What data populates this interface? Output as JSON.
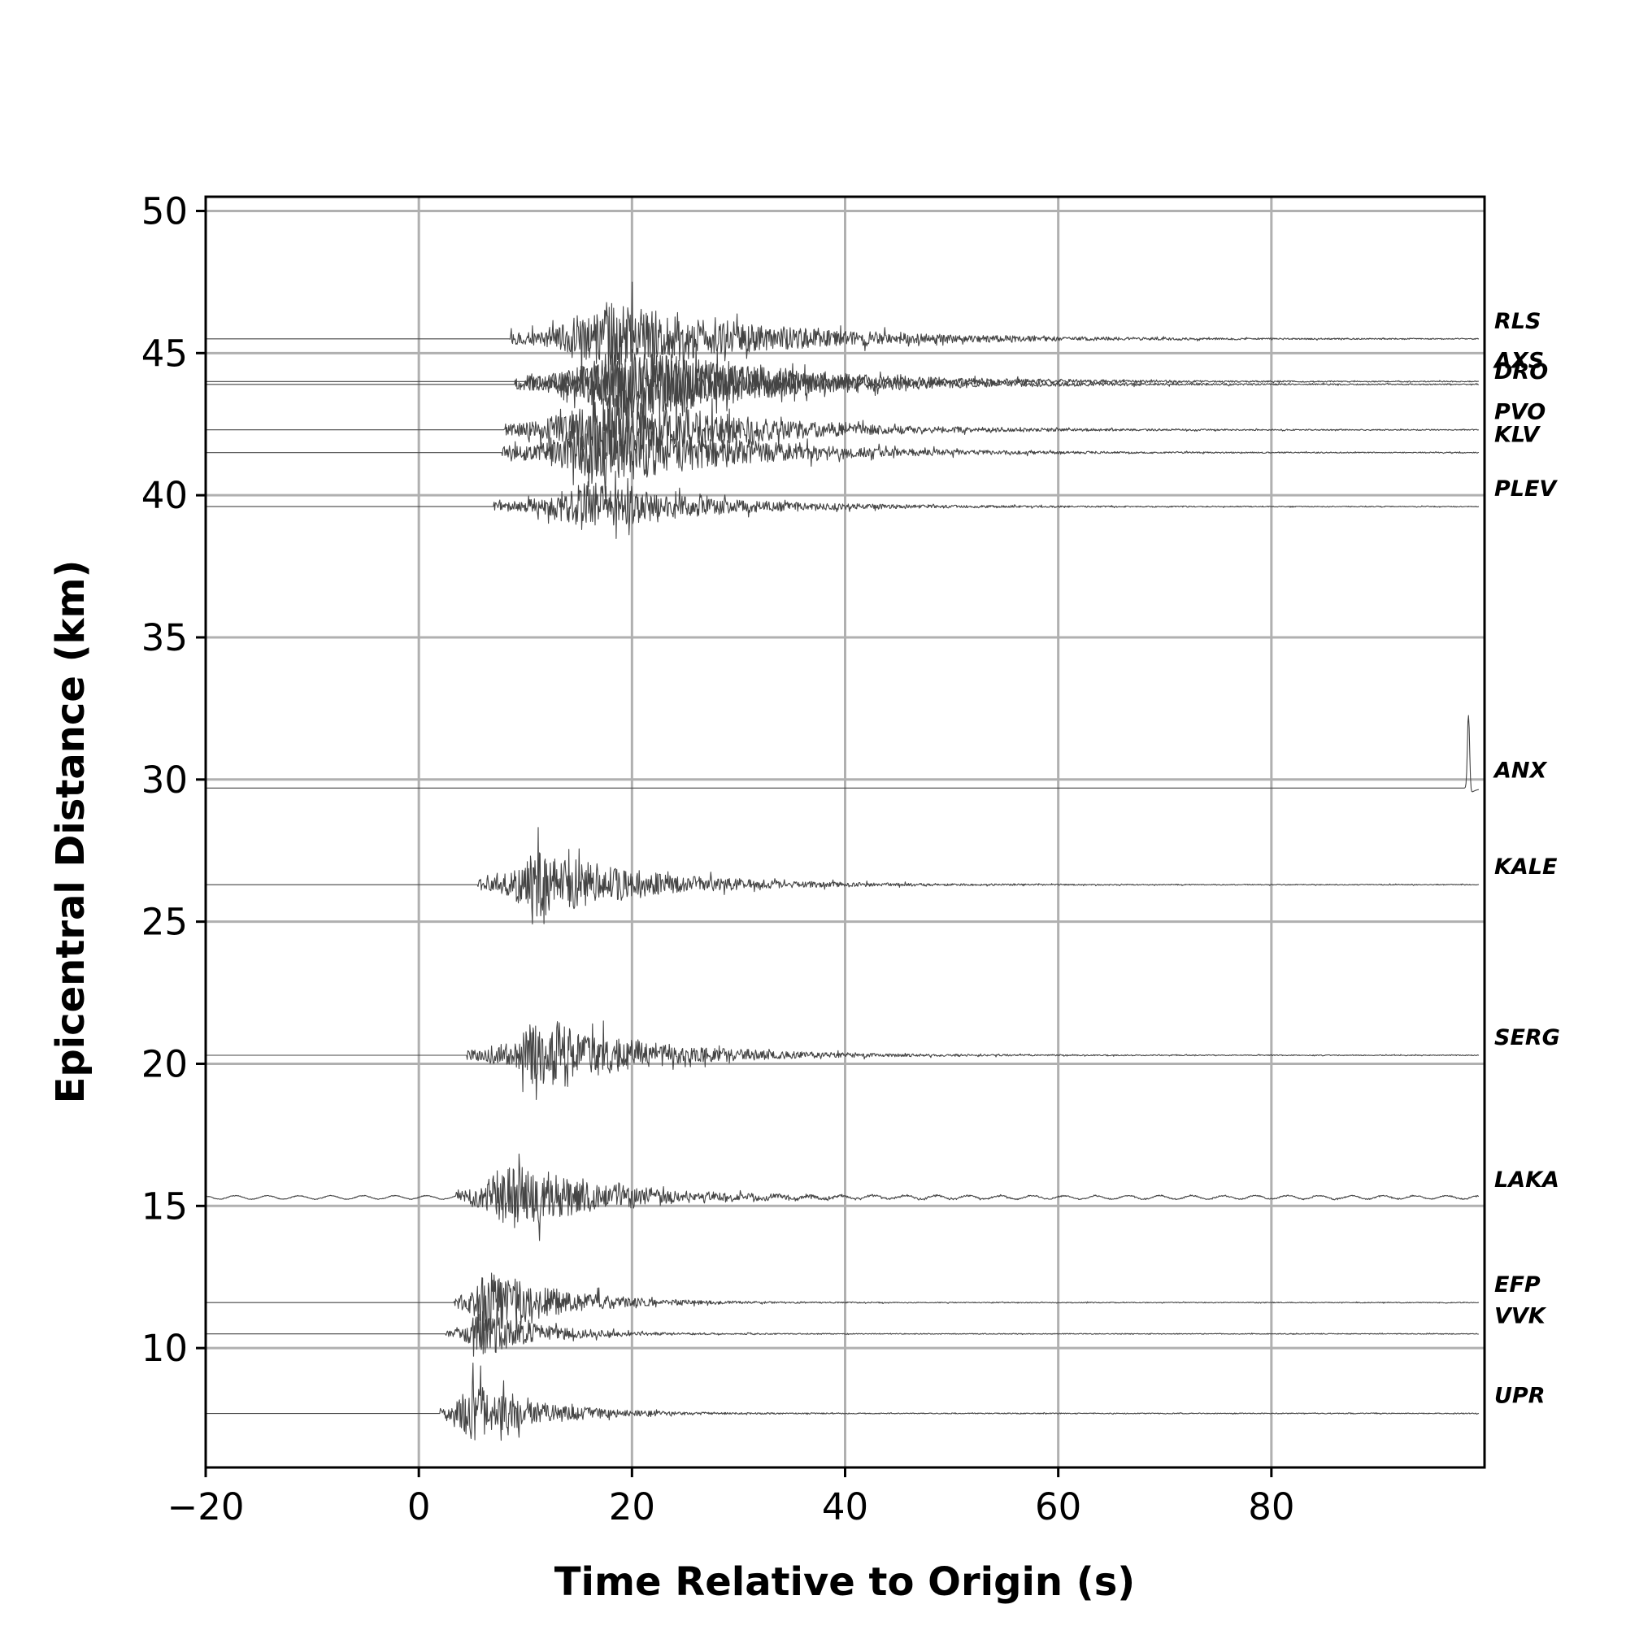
{
  "chart_data": {
    "type": "line",
    "xlabel": "Time Relative to Origin (s)",
    "ylabel": "Epicentral Distance (km)",
    "xlim": [
      -20,
      100
    ],
    "ylim": [
      5.8,
      50.5
    ],
    "xticks": [
      -20,
      0,
      20,
      40,
      60,
      80
    ],
    "xtick_labels": [
      "−20",
      "0",
      "20",
      "40",
      "60",
      "80"
    ],
    "yticks": [
      10,
      15,
      20,
      25,
      30,
      35,
      40,
      45,
      50
    ],
    "yticks_labels": [
      "10",
      "15",
      "20",
      "25",
      "30",
      "35",
      "40",
      "45",
      "50"
    ],
    "grid": true,
    "trace_color": "#444444",
    "series": [
      {
        "name": "UPR",
        "distance": 7.7,
        "onset": 2.0,
        "peak_time": 4.8,
        "duration": 28,
        "peak_amp": 2.5,
        "noise": 0.0
      },
      {
        "name": "VVK",
        "distance": 10.5,
        "onset": 2.5,
        "peak_time": 5.8,
        "duration": 25,
        "peak_amp": 1.9,
        "noise": 0.0
      },
      {
        "name": "EFP",
        "distance": 11.6,
        "onset": 3.3,
        "peak_time": 6.2,
        "duration": 30,
        "peak_amp": 2.9,
        "noise": 0.0
      },
      {
        "name": "LAKA",
        "distance": 15.3,
        "onset": 3.5,
        "peak_time": 8.2,
        "duration": 40,
        "peak_amp": 2.9,
        "noise": 0.06
      },
      {
        "name": "SERG",
        "distance": 20.3,
        "onset": 4.5,
        "peak_time": 11.2,
        "duration": 45,
        "peak_amp": 2.9,
        "noise": 0.0
      },
      {
        "name": "KALE",
        "distance": 26.3,
        "onset": 5.5,
        "peak_time": 11.0,
        "duration": 45,
        "peak_amp": 2.8,
        "noise": 0.0
      },
      {
        "name": "ANX",
        "distance": 29.7,
        "onset": 98.0,
        "peak_time": 98.5,
        "duration": 1,
        "peak_amp": 2.8,
        "noise": 0.0,
        "spike": true
      },
      {
        "name": "PLEV",
        "distance": 39.6,
        "onset": 7.0,
        "peak_time": 15.5,
        "duration": 50,
        "peak_amp": 2.0,
        "noise": 0.0
      },
      {
        "name": "KLV",
        "distance": 41.5,
        "onset": 7.8,
        "peak_time": 16.5,
        "duration": 55,
        "peak_amp": 3.0,
        "noise": 0.0
      },
      {
        "name": "PVO",
        "distance": 42.3,
        "onset": 8.0,
        "peak_time": 17.5,
        "duration": 55,
        "peak_amp": 3.1,
        "noise": 0.0
      },
      {
        "name": "DRO",
        "distance": 43.9,
        "onset": 9.0,
        "peak_time": 19.0,
        "duration": 60,
        "peak_amp": 3.2,
        "noise": 0.0
      },
      {
        "name": "AXS",
        "distance": 44.0,
        "onset": 10.0,
        "peak_time": 19.5,
        "duration": 60,
        "peak_amp": 2.9,
        "noise": 0.0
      },
      {
        "name": "RLS",
        "distance": 45.5,
        "onset": 8.5,
        "peak_time": 18.0,
        "duration": 65,
        "peak_amp": 2.9,
        "noise": 0.0
      }
    ]
  }
}
